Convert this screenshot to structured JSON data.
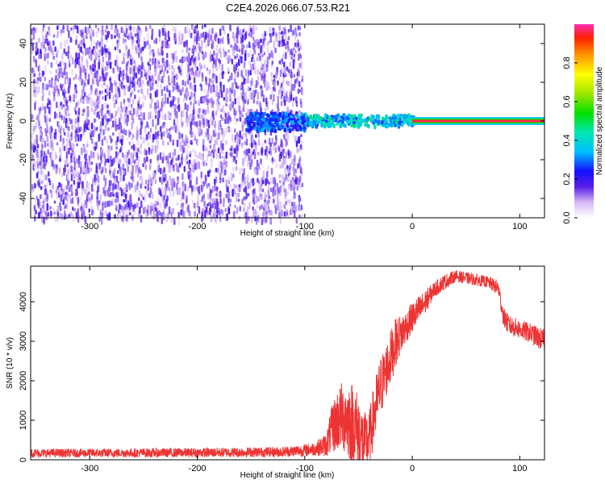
{
  "title": "C2E4.2026.066.07.53.R21",
  "colors": {
    "snr_line": "#ee3333",
    "spectro_noise": "#6a14e8",
    "spectro_noise_light": "#b58cf2",
    "axis": "#000000"
  },
  "chart_data": [
    {
      "type": "heatmap",
      "name": "spectrogram",
      "xlabel": "Height of straight line (km)",
      "ylabel": "Frequency (Hz)",
      "xlim": [
        -355,
        123
      ],
      "ylim": [
        -50,
        50
      ],
      "xticks": [
        -300,
        -200,
        -100,
        0,
        100
      ],
      "yticks": [
        -40,
        -20,
        0,
        20,
        40
      ],
      "colorbar": {
        "label": "Normalized spectral amplitude",
        "range": [
          0,
          1
        ],
        "ticks": [
          "0.0",
          "0.2",
          "0.4",
          "0.6",
          "0.8"
        ],
        "tick_values": [
          0.0,
          0.2,
          0.4,
          0.6,
          0.8
        ]
      },
      "regions": [
        {
          "x": [
            -355,
            -103
          ],
          "y": [
            -50,
            50
          ],
          "amplitude": [
            0.05,
            0.2
          ],
          "description": "noise"
        },
        {
          "x": [
            -155,
            -100
          ],
          "y": [
            -4,
            5
          ],
          "amplitude": [
            0.2,
            0.35
          ]
        },
        {
          "x": [
            -100,
            0
          ],
          "y": [
            -2,
            4
          ],
          "amplitude": [
            0.25,
            0.5
          ]
        },
        {
          "x": [
            0,
            123
          ],
          "y": [
            -0.5,
            0.5
          ],
          "amplitude": [
            0.9,
            1.0
          ],
          "description": "carrier"
        }
      ]
    },
    {
      "type": "line",
      "name": "snr",
      "xlabel": "Height of straight line (km)",
      "ylabel": "SNR (10 * v/v)",
      "xlim": [
        -355,
        123
      ],
      "ylim": [
        0,
        4900
      ],
      "xticks": [
        -300,
        -200,
        -100,
        0,
        100
      ],
      "yticks": [
        0,
        1000,
        2000,
        3000,
        4000
      ],
      "envelope": {
        "x": [
          -355,
          -300,
          -200,
          -120,
          -100,
          -90,
          -80,
          -75,
          -70,
          -65,
          -60,
          -55,
          -50,
          -45,
          -40,
          -35,
          -30,
          -25,
          -20,
          -15,
          -10,
          -5,
          0,
          10,
          20,
          30,
          40,
          50,
          60,
          70,
          80,
          85,
          90,
          100,
          110,
          123
        ],
        "mean": [
          170,
          170,
          180,
          200,
          240,
          280,
          380,
          750,
          1000,
          1100,
          1050,
          900,
          700,
          400,
          550,
          1200,
          1800,
          2200,
          2600,
          3000,
          3200,
          3400,
          3600,
          3900,
          4300,
          4500,
          4650,
          4600,
          4550,
          4500,
          4350,
          3600,
          3400,
          3300,
          3200,
          3000
        ],
        "amp": [
          110,
          110,
          120,
          130,
          160,
          180,
          300,
          600,
          800,
          900,
          1000,
          1100,
          1000,
          800,
          700,
          800,
          800,
          700,
          700,
          600,
          500,
          400,
          400,
          350,
          200,
          200,
          150,
          150,
          150,
          150,
          200,
          250,
          250,
          250,
          250,
          300
        ]
      }
    }
  ]
}
